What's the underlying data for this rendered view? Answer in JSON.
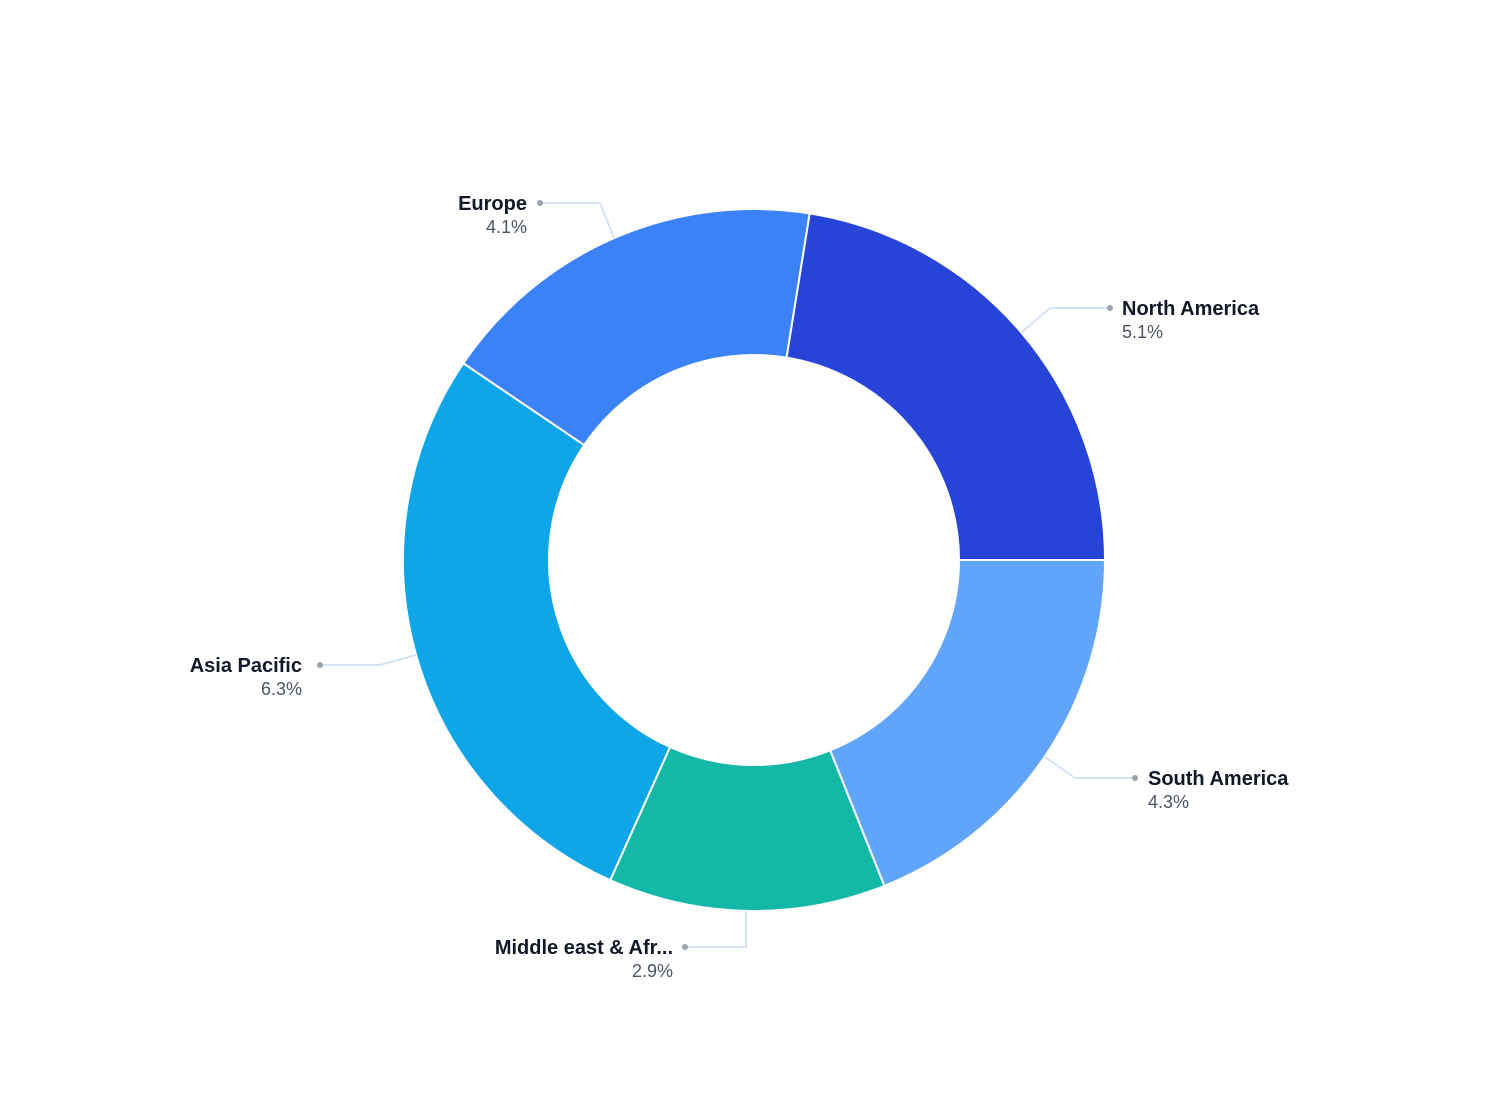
{
  "chart_data": {
    "type": "pie",
    "subtype": "donut",
    "title": "",
    "legend": "none",
    "labels_position": "outside with leader lines",
    "series": [
      {
        "name": "North America",
        "value": 5.1,
        "label": "5.1%",
        "color": "#2744d9"
      },
      {
        "name": "South America",
        "value": 4.3,
        "label": "4.3%",
        "color": "#60a5fa"
      },
      {
        "name": "Middle east & Africa",
        "display_name": "Middle east & Afr...",
        "value": 2.9,
        "label": "2.9%",
        "color": "#14b8a6"
      },
      {
        "name": "Asia Pacific",
        "value": 6.3,
        "label": "6.3%",
        "color": "#0ea5e9"
      },
      {
        "name": "Europe",
        "value": 4.1,
        "label": "4.1%",
        "color": "#3b82f6"
      }
    ]
  },
  "labels": {
    "north_america": {
      "name": "North America",
      "value": "5.1%"
    },
    "south_america": {
      "name": "South America",
      "value": "4.3%"
    },
    "middle_east": {
      "name": "Middle east & Afr...",
      "value": "2.9%"
    },
    "asia_pacific": {
      "name": "Asia Pacific",
      "value": "6.3%"
    },
    "europe": {
      "name": "Europe",
      "value": "4.1%"
    }
  },
  "style": {
    "leader_line_color": "#d6e2f3",
    "leader_dot_color": "#9ca3af",
    "slice_border_color": "#ffffff"
  }
}
